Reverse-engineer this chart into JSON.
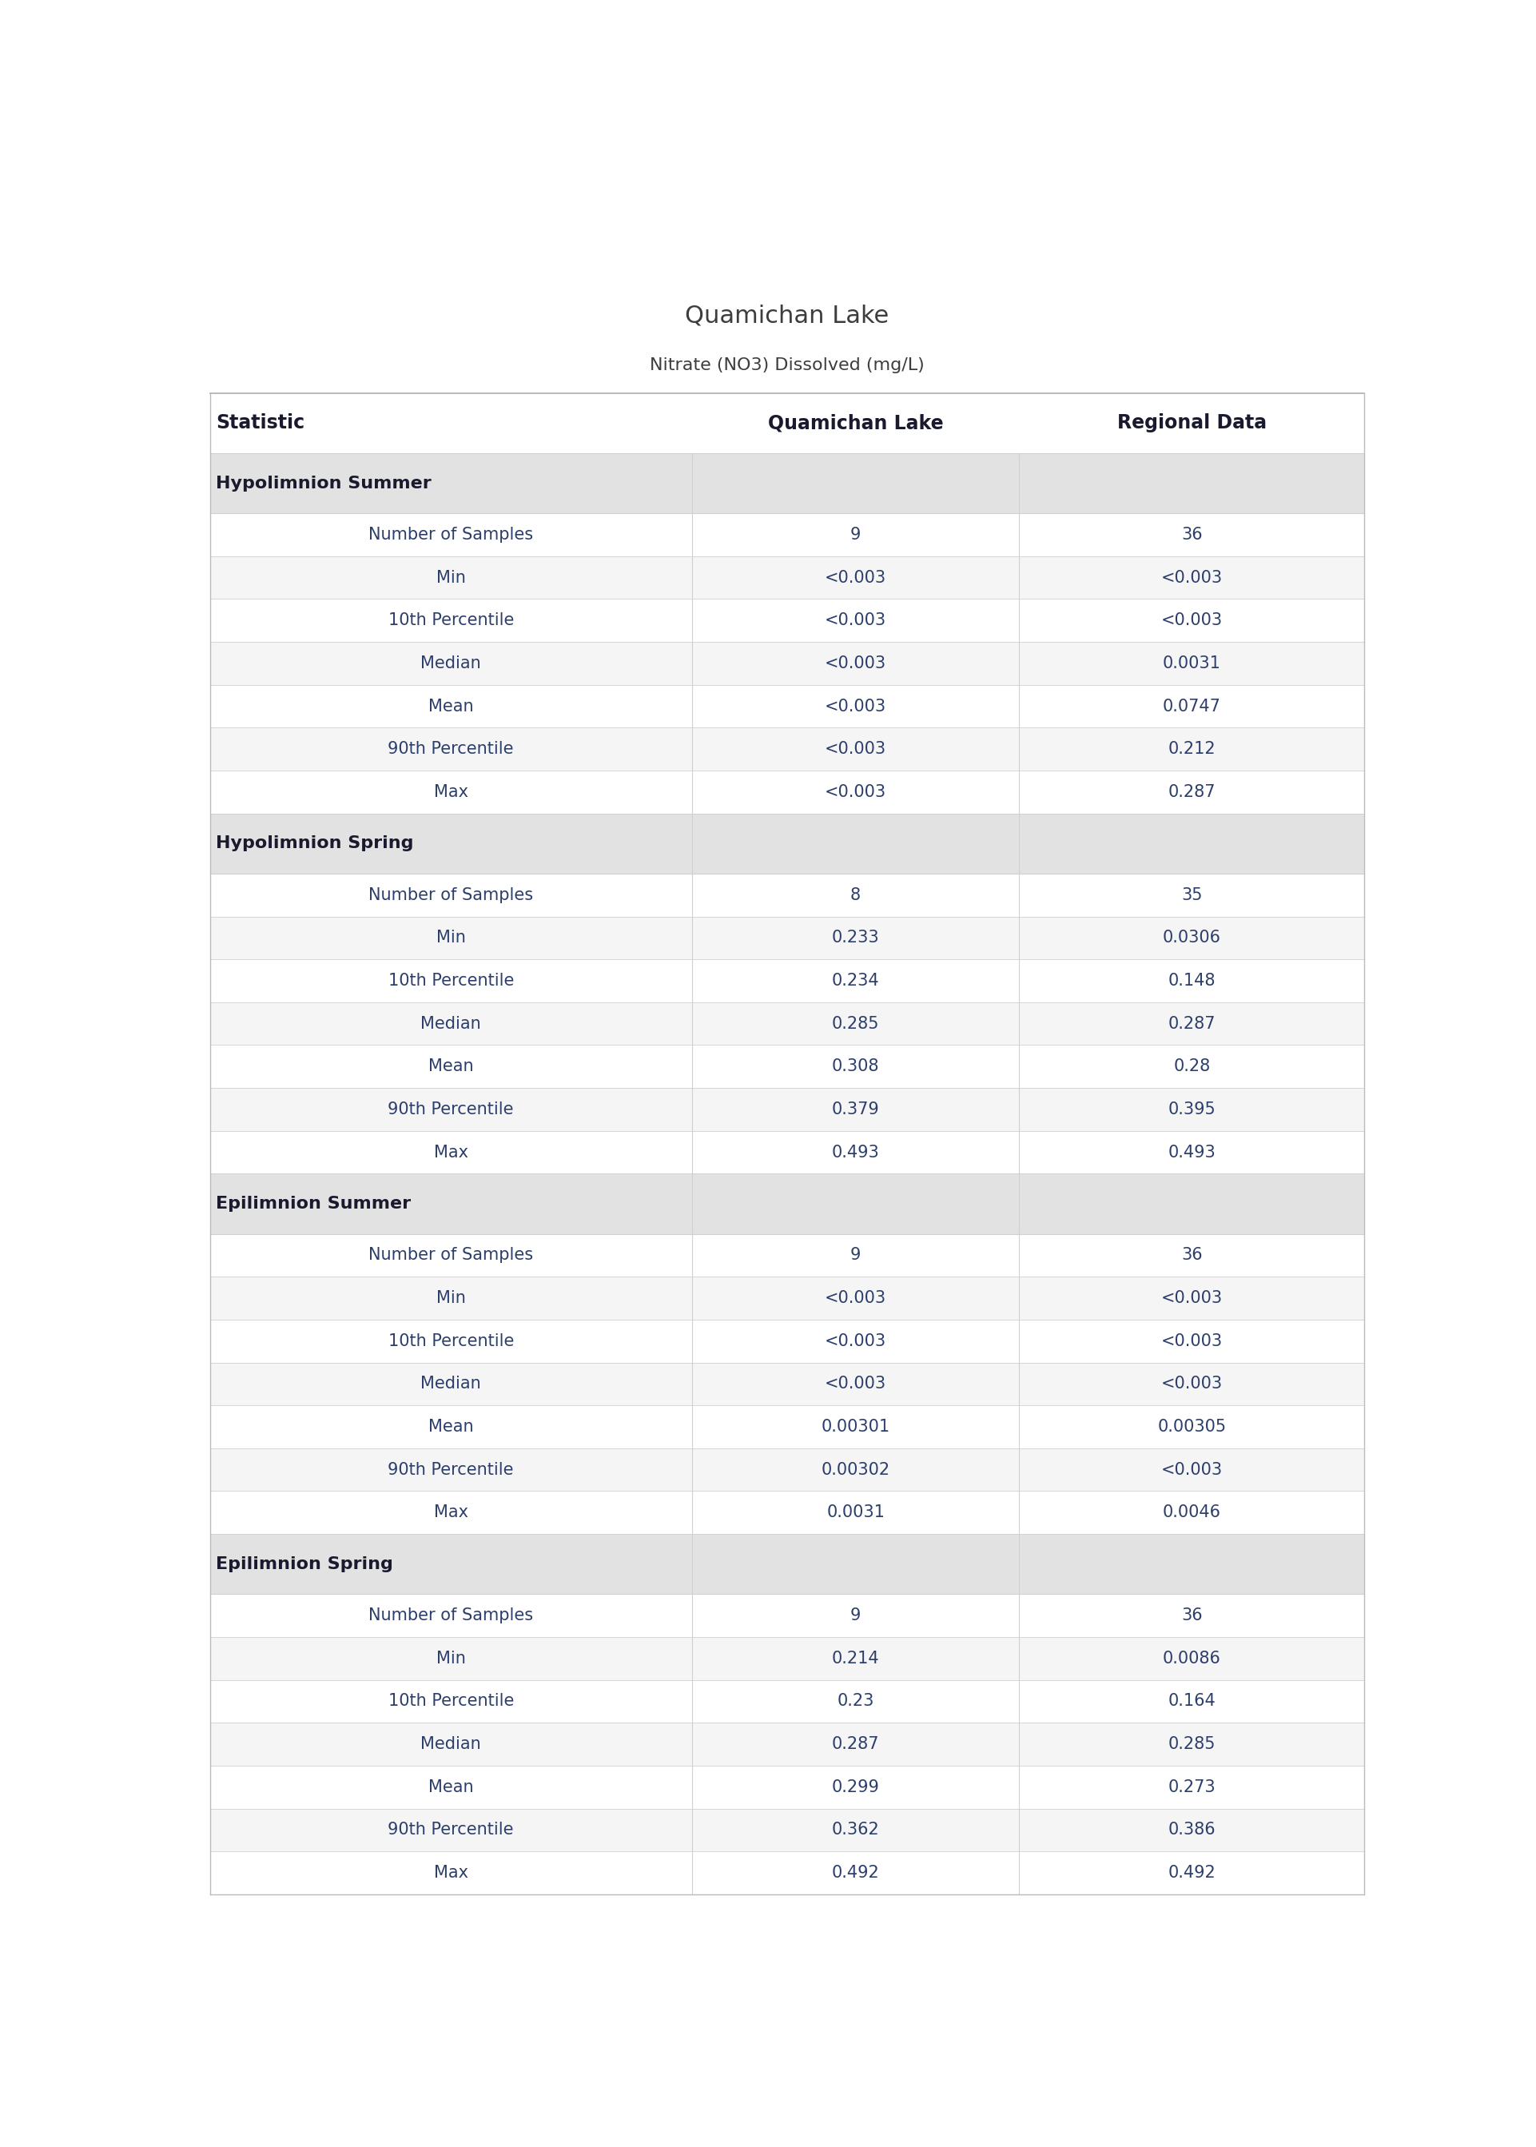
{
  "title": "Quamichan Lake",
  "subtitle": "Nitrate (NO3) Dissolved (mg/L)",
  "col_headers": [
    "Statistic",
    "Quamichan Lake",
    "Regional Data"
  ],
  "sections": [
    {
      "name": "Hypolimnion Summer",
      "rows": [
        [
          "Number of Samples",
          "9",
          "36"
        ],
        [
          "Min",
          "<0.003",
          "<0.003"
        ],
        [
          "10th Percentile",
          "<0.003",
          "<0.003"
        ],
        [
          "Median",
          "<0.003",
          "0.0031"
        ],
        [
          "Mean",
          "<0.003",
          "0.0747"
        ],
        [
          "90th Percentile",
          "<0.003",
          "0.212"
        ],
        [
          "Max",
          "<0.003",
          "0.287"
        ]
      ]
    },
    {
      "name": "Hypolimnion Spring",
      "rows": [
        [
          "Number of Samples",
          "8",
          "35"
        ],
        [
          "Min",
          "0.233",
          "0.0306"
        ],
        [
          "10th Percentile",
          "0.234",
          "0.148"
        ],
        [
          "Median",
          "0.285",
          "0.287"
        ],
        [
          "Mean",
          "0.308",
          "0.28"
        ],
        [
          "90th Percentile",
          "0.379",
          "0.395"
        ],
        [
          "Max",
          "0.493",
          "0.493"
        ]
      ]
    },
    {
      "name": "Epilimnion Summer",
      "rows": [
        [
          "Number of Samples",
          "9",
          "36"
        ],
        [
          "Min",
          "<0.003",
          "<0.003"
        ],
        [
          "10th Percentile",
          "<0.003",
          "<0.003"
        ],
        [
          "Median",
          "<0.003",
          "<0.003"
        ],
        [
          "Mean",
          "0.00301",
          "0.00305"
        ],
        [
          "90th Percentile",
          "0.00302",
          "<0.003"
        ],
        [
          "Max",
          "0.0031",
          "0.0046"
        ]
      ]
    },
    {
      "name": "Epilimnion Spring",
      "rows": [
        [
          "Number of Samples",
          "9",
          "36"
        ],
        [
          "Min",
          "0.214",
          "0.0086"
        ],
        [
          "10th Percentile",
          "0.23",
          "0.164"
        ],
        [
          "Median",
          "0.287",
          "0.285"
        ],
        [
          "Mean",
          "0.299",
          "0.273"
        ],
        [
          "90th Percentile",
          "0.362",
          "0.386"
        ],
        [
          "Max",
          "0.492",
          "0.492"
        ]
      ]
    }
  ],
  "title_color": "#3d3d3d",
  "subtitle_color": "#3d3d3d",
  "header_text_color": "#1a1a2e",
  "section_header_bg": "#e2e2e2",
  "section_header_text_color": "#1a1a2e",
  "data_text_color": "#2c3e6b",
  "row_bg_white": "#ffffff",
  "row_bg_light": "#f5f5f5",
  "row_line_color": "#d0d0d0",
  "header_top_line_color": "#aaaaaa",
  "outer_border_color": "#bbbbbb"
}
